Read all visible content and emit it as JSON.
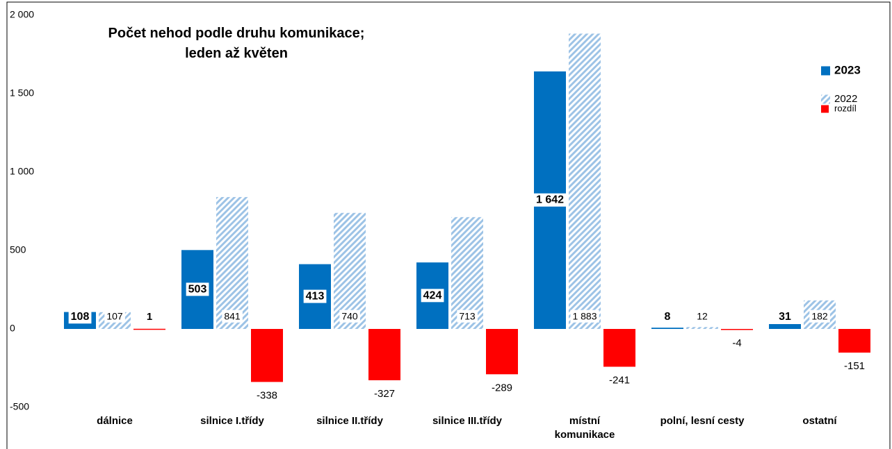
{
  "chart_data": {
    "type": "bar",
    "title": "Počet nehod podle druhu komunikace;\nleden až květen",
    "categories": [
      "dálnice",
      "silnice I.třídy",
      "silnice II.třídy",
      "silnice III.třídy",
      "místní\nkomunikace",
      "polní, lesní cesty",
      "ostatní"
    ],
    "series": [
      {
        "name": "2023",
        "color": "#0070c0",
        "values": [
          108,
          503,
          413,
          424,
          1642,
          8,
          31
        ],
        "value_labels": [
          "108",
          "503",
          "413",
          "424",
          "1 642",
          "8",
          "31"
        ]
      },
      {
        "name": "2022",
        "color": "#9dc3e6",
        "pattern": "hatch",
        "values": [
          107,
          841,
          740,
          713,
          1883,
          12,
          182
        ],
        "value_labels": [
          "107",
          "841",
          "740",
          "713",
          "1 883",
          "12",
          "182"
        ]
      },
      {
        "name": "rozdíl",
        "color": "#ff0000",
        "values": [
          1,
          -338,
          -327,
          -289,
          -241,
          -4,
          -151
        ],
        "value_labels": [
          "1",
          "-338",
          "-327",
          "-289",
          "-241",
          "-4",
          "-151"
        ]
      }
    ],
    "ylim": [
      -500,
      2000
    ],
    "yticks": [
      {
        "value": 2000,
        "label": "2 000"
      },
      {
        "value": 1500,
        "label": "1 500"
      },
      {
        "value": 1000,
        "label": "1 000"
      },
      500,
      0,
      -500
    ],
    "grid": false,
    "legend": "top-right"
  }
}
